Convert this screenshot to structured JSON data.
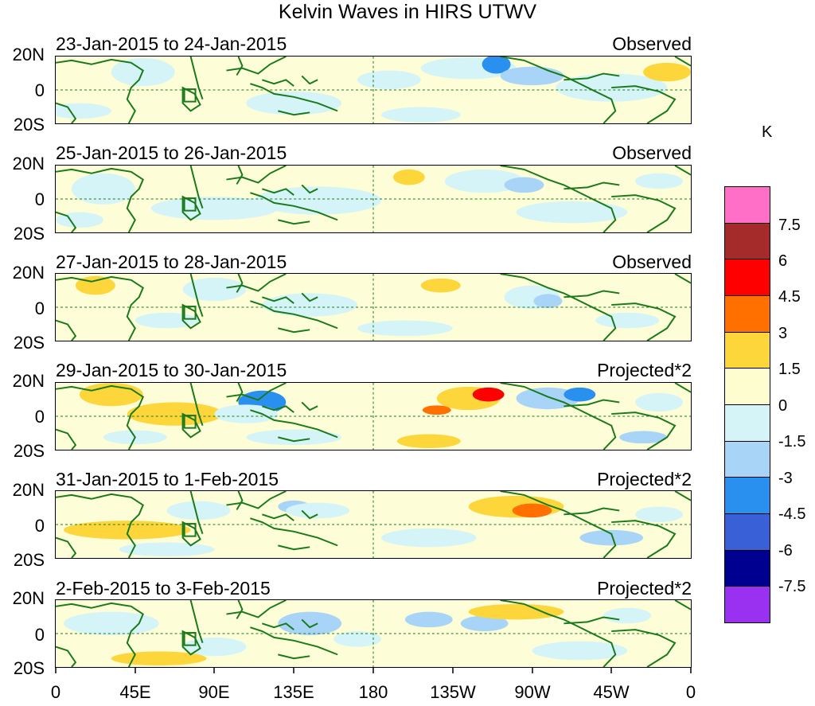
{
  "title": "Kelvin Waves in HIRS UTWV",
  "unit": "K",
  "lat_labels": [
    "20N",
    "0",
    "20S"
  ],
  "lon_labels": [
    "0",
    "45E",
    "90E",
    "135E",
    "180",
    "135W",
    "90W",
    "45W",
    "0"
  ],
  "panels": [
    {
      "date": "23-Jan-2015 to 24-Jan-2015",
      "mode": "Observed"
    },
    {
      "date": "25-Jan-2015 to 26-Jan-2015",
      "mode": "Observed"
    },
    {
      "date": "27-Jan-2015 to 28-Jan-2015",
      "mode": "Observed"
    },
    {
      "date": "29-Jan-2015 to 30-Jan-2015",
      "mode": "Projected*2"
    },
    {
      "date": "31-Jan-2015 to 1-Feb-2015",
      "mode": "Projected*2"
    },
    {
      "date": "2-Feb-2015 to 3-Feb-2015",
      "mode": "Projected*2"
    }
  ],
  "legend": {
    "labels": [
      "7.5",
      "6",
      "4.5",
      "3",
      "1.5",
      "0",
      "-1.5",
      "-3",
      "-4.5",
      "-6",
      "-7.5"
    ],
    "colors": [
      "#ff6ec7",
      "#a52a2a",
      "#ff0000",
      "#ff7000",
      "#fcd63a",
      "#fdfdd0",
      "#d4f4f8",
      "#a8d4f8",
      "#2a90f0",
      "#3a60d8",
      "#000090",
      "#9a30f0"
    ]
  },
  "colors": {
    "coast": "#1a7a1a",
    "dash": "#1a7a1a"
  }
}
